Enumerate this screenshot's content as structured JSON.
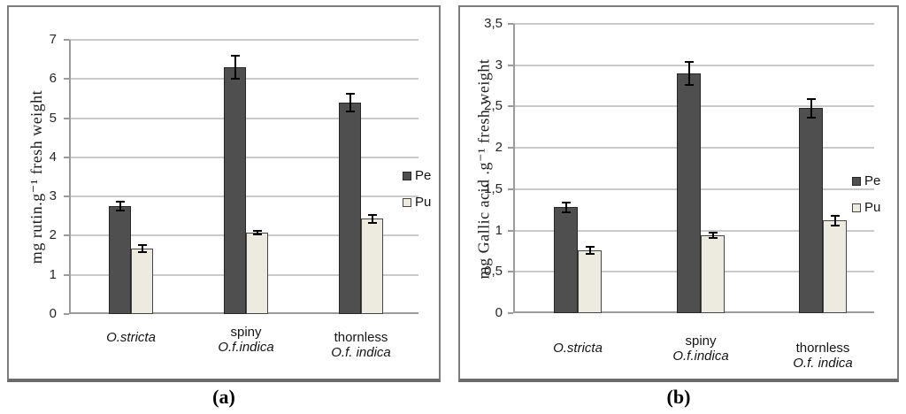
{
  "captions": {
    "a": "(a)",
    "b": "(b)"
  },
  "colors": {
    "pe_fill": "#4f4f4f",
    "pe_border": "#262626",
    "pu_fill": "#edebdf",
    "pu_border": "#454545",
    "gridline": "#cacaca",
    "axis": "#9b9b9b",
    "error_bar": "#000000",
    "panel_border": "#7c7c7c"
  },
  "chart_data": [
    {
      "id": "a",
      "type": "bar",
      "title": "",
      "xlabel": "",
      "ylabel": "mg rutin.g⁻¹ fresh weight",
      "ylim": [
        0,
        7
      ],
      "grid": true,
      "legend_position": "right",
      "yticks": [
        {
          "value": 0,
          "label": "0"
        },
        {
          "value": 1,
          "label": "1"
        },
        {
          "value": 2,
          "label": "2"
        },
        {
          "value": 3,
          "label": "3"
        },
        {
          "value": 4,
          "label": "4"
        },
        {
          "value": 5,
          "label": "5"
        },
        {
          "value": 6,
          "label": "6"
        },
        {
          "value": 7,
          "label": "7"
        }
      ],
      "categories": [
        {
          "lines": [
            {
              "text": "O.stricta",
              "italic": true
            }
          ]
        },
        {
          "lines": [
            {
              "text": "spiny",
              "italic": false
            },
            {
              "text": "O.f.indica",
              "italic": true
            }
          ]
        },
        {
          "lines": [
            {
              "text": "thornless",
              "italic": false
            },
            {
              "text": "O.f. indica",
              "italic": true
            }
          ]
        }
      ],
      "series": [
        {
          "name": "Pe",
          "color_key": "pe",
          "values": [
            2.75,
            6.3,
            5.4
          ],
          "errors": [
            0.14,
            0.32,
            0.25
          ]
        },
        {
          "name": "Pu",
          "color_key": "pu",
          "values": [
            1.67,
            2.07,
            2.43
          ],
          "errors": [
            0.12,
            0.07,
            0.13
          ]
        }
      ]
    },
    {
      "id": "b",
      "type": "bar",
      "title": "",
      "xlabel": "",
      "ylabel": "mg Gallic acid .g⁻¹ fresh weight",
      "ylim": [
        0,
        3.5
      ],
      "grid": true,
      "legend_position": "right",
      "yticks": [
        {
          "value": 0,
          "label": "0"
        },
        {
          "value": 0.5,
          "label": "0,5"
        },
        {
          "value": 1,
          "label": "1"
        },
        {
          "value": 1.5,
          "label": "1,5"
        },
        {
          "value": 2,
          "label": "2"
        },
        {
          "value": 2.5,
          "label": "2,5"
        },
        {
          "value": 3,
          "label": "3"
        },
        {
          "value": 3.5,
          "label": "3,5"
        }
      ],
      "categories": [
        {
          "lines": [
            {
              "text": "O.stricta",
              "italic": true
            }
          ]
        },
        {
          "lines": [
            {
              "text": "spiny",
              "italic": false
            },
            {
              "text": "O.f.indica",
              "italic": true
            }
          ]
        },
        {
          "lines": [
            {
              "text": "thornless",
              "italic": false
            },
            {
              "text": "O.f. indica",
              "italic": true
            }
          ]
        }
      ],
      "series": [
        {
          "name": "Pe",
          "color_key": "pe",
          "values": [
            1.28,
            2.9,
            2.48
          ],
          "errors": [
            0.07,
            0.15,
            0.12
          ]
        },
        {
          "name": "Pu",
          "color_key": "pu",
          "values": [
            0.76,
            0.94,
            1.12
          ],
          "errors": [
            0.05,
            0.04,
            0.07
          ]
        }
      ]
    }
  ]
}
